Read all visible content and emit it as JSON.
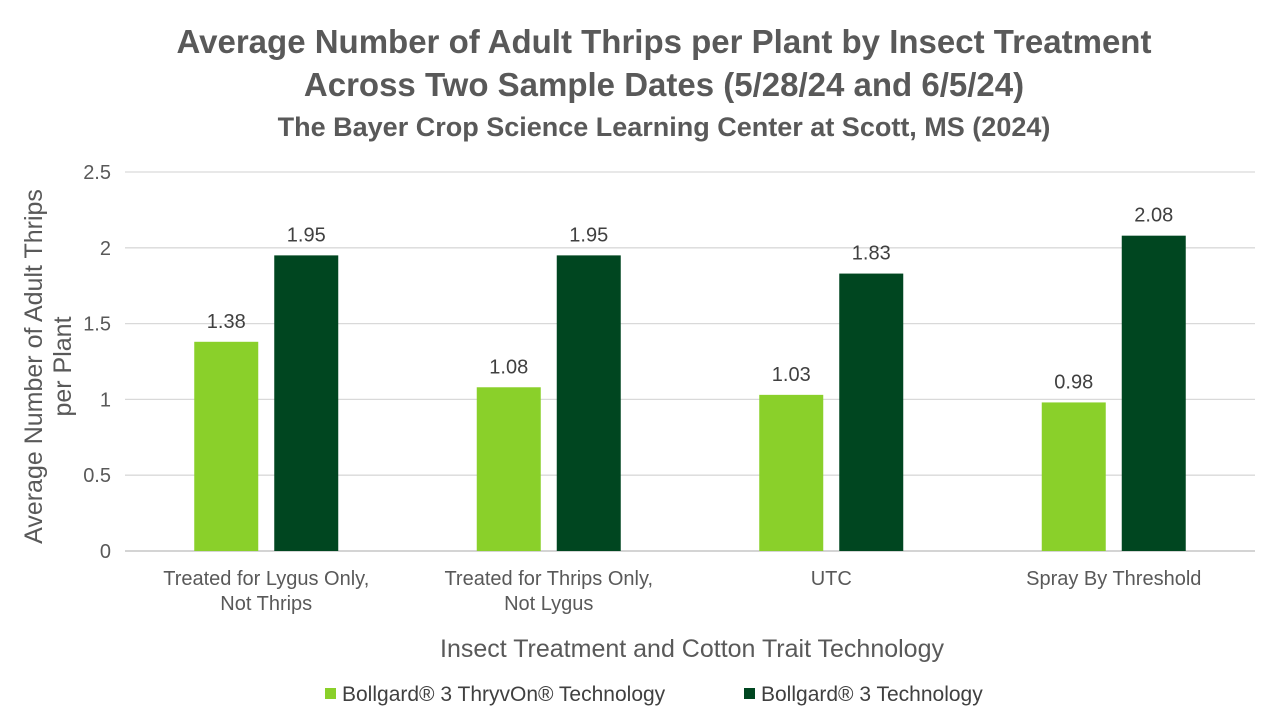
{
  "chart_data": {
    "type": "bar",
    "title": "Average Number of Adult Thrips per Plant by Insect Treatment",
    "title_line2": "Across Two Sample Dates (5/28/24 and 6/5/24)",
    "subtitle": "The Bayer Crop Science Learning Center at Scott, MS (2024)",
    "ylabel": "Average Number of Adult Thrips per Plant",
    "xlabel": "Insect Treatment and Cotton Trait Technology",
    "categories": [
      [
        "Treated for Lygus Only,",
        "Not Thrips"
      ],
      [
        "Treated for Thrips Only,",
        "Not Lygus"
      ],
      [
        "UTC"
      ],
      [
        "Spray By Threshold"
      ]
    ],
    "series": [
      {
        "name": "Bollgard® 3 ThryvOn® Technology",
        "color": "#8ad02a",
        "values": [
          1.38,
          1.08,
          1.03,
          0.98
        ]
      },
      {
        "name": "Bollgard® 3 Technology",
        "color": "#004620",
        "values": [
          1.95,
          1.95,
          1.83,
          2.08
        ]
      }
    ],
    "ylim": [
      0,
      2.5
    ],
    "yticks": [
      "0",
      "0.5",
      "1",
      "1.5",
      "2",
      "2.5"
    ],
    "grid": true,
    "legend_position": "bottom"
  }
}
